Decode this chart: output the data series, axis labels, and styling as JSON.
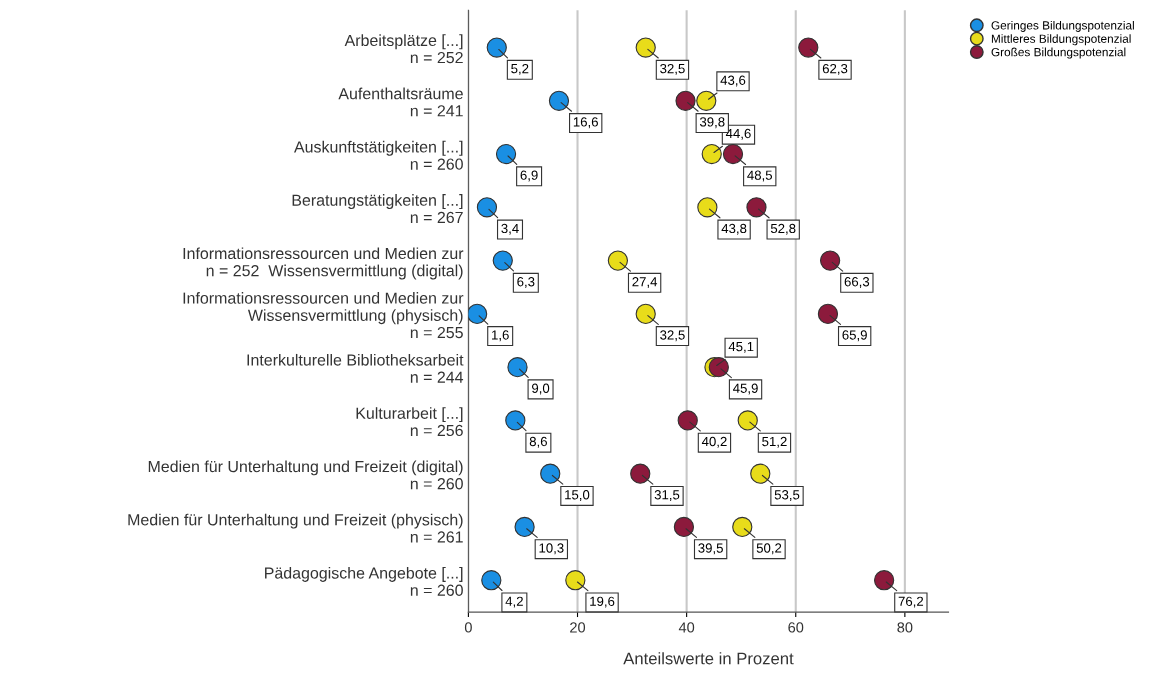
{
  "chart_data": {
    "type": "scatter",
    "orientation": "horizontal",
    "xlabel": "Anteilswerte in Prozent",
    "categories": [
      "Arbeitsplätze [...]\nn = 252",
      "Aufenthaltsräume\nn = 241",
      "Auskunftstätigkeiten [...]\nn = 260",
      "Beratungstätigkeiten [...]\nn = 267",
      "Informationsressourcen und Medien zur\nn = 252  Wissensvermittlung (digital)",
      "Informationsressourcen und Medien zur\nWissensvermittlung (physisch)\nn = 255",
      "Interkulturelle Bibliotheksarbeit\nn = 244",
      "Kulturarbeit [...]\nn = 256",
      "Medien für Unterhaltung und Freizeit (digital)\nn = 260",
      "Medien für Unterhaltung und Freizeit (physisch)\nn = 261",
      "Pädagogische Angebote [...]\nn = 260"
    ],
    "series": [
      {
        "name": "Geringes Bildungspotenzial",
        "color": "#1a8fe3",
        "values": [
          5.2,
          16.6,
          6.9,
          3.4,
          6.3,
          1.6,
          9.0,
          8.6,
          15.0,
          10.3,
          4.2
        ],
        "value_labels": [
          "5,2",
          "16,6",
          "6,9",
          "3,4",
          "6,3",
          "1,6",
          "9,0",
          "8,6",
          "15,0",
          "10,3",
          "4,2"
        ]
      },
      {
        "name": "Mittleres Bildungspotenzial",
        "color": "#e8dc1a",
        "values": [
          32.5,
          43.6,
          44.6,
          43.8,
          27.4,
          32.5,
          45.1,
          51.2,
          53.5,
          50.2,
          19.6
        ],
        "value_labels": [
          "32,5",
          "43,6",
          "44,6",
          "43,8",
          "27,4",
          "32,5",
          "45,1",
          "51,2",
          "53,5",
          "50,2",
          "19,6"
        ]
      },
      {
        "name": "Großes Bildungspotenzial",
        "color": "#8c1a3c",
        "values": [
          62.3,
          39.8,
          48.5,
          52.8,
          66.3,
          65.9,
          45.9,
          40.2,
          31.5,
          39.5,
          76.2
        ],
        "value_labels": [
          "62,3",
          "39,8",
          "48,5",
          "52,8",
          "66,3",
          "65,9",
          "45,9",
          "40,2",
          "31,5",
          "39,5",
          "76,2"
        ]
      }
    ],
    "xlim": [
      0,
      88
    ],
    "xticks": [
      0,
      20,
      40,
      60,
      80
    ],
    "grid": "x",
    "legend": "top right",
    "marker": "circle"
  }
}
